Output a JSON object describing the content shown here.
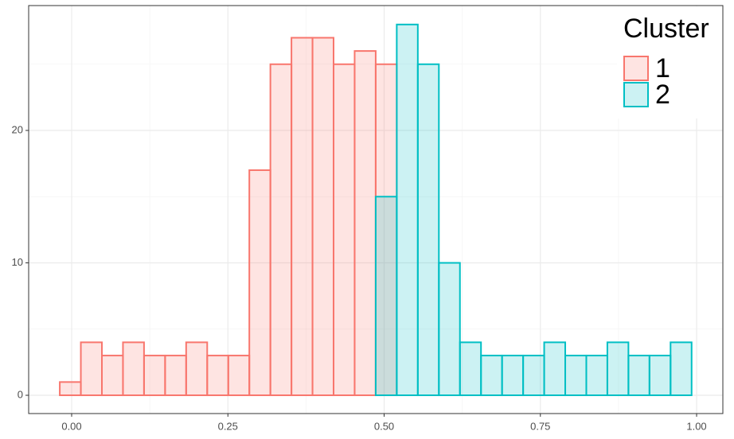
{
  "chart_data": {
    "type": "histogram",
    "bins": [
      -0.019,
      0.0147,
      0.0484,
      0.0821,
      0.1158,
      0.1495,
      0.1832,
      0.2169,
      0.2506,
      0.2843,
      0.318,
      0.3517,
      0.3854,
      0.4191,
      0.4528,
      0.4865,
      0.5202,
      0.5539,
      0.5876,
      0.6213,
      0.655,
      0.6887,
      0.7224,
      0.7561,
      0.7898,
      0.8235,
      0.8572,
      0.8909,
      0.9246,
      0.9583,
      0.992
    ],
    "series": [
      {
        "name": "1",
        "color": "#F8766D",
        "values": [
          1,
          4,
          3,
          4,
          3,
          3,
          4,
          3,
          3,
          17,
          25,
          27,
          27,
          25,
          26,
          25,
          0,
          0,
          0,
          0,
          0,
          0,
          0,
          0,
          0,
          0,
          0,
          0,
          0,
          0
        ]
      },
      {
        "name": "2",
        "color": "#00BFC4",
        "values": [
          0,
          0,
          0,
          0,
          0,
          0,
          0,
          0,
          0,
          0,
          0,
          0,
          0,
          0,
          0,
          15,
          28,
          25,
          10,
          4,
          3,
          3,
          3,
          4,
          3,
          3,
          4,
          3,
          3,
          4
        ]
      }
    ],
    "legend_title": "Cluster",
    "legend_position": "top-right",
    "xlim": [
      -0.0688,
      1.042
    ],
    "ylim": [
      -1.38,
      29.43
    ],
    "xticks": [
      {
        "value": 0,
        "label": "0.00"
      },
      {
        "value": 0.25,
        "label": "0.25"
      },
      {
        "value": 0.5,
        "label": "0.50"
      },
      {
        "value": 0.75,
        "label": "0.75"
      },
      {
        "value": 1,
        "label": "1.00"
      }
    ],
    "yticks": [
      0,
      10,
      20
    ],
    "grid": true
  }
}
